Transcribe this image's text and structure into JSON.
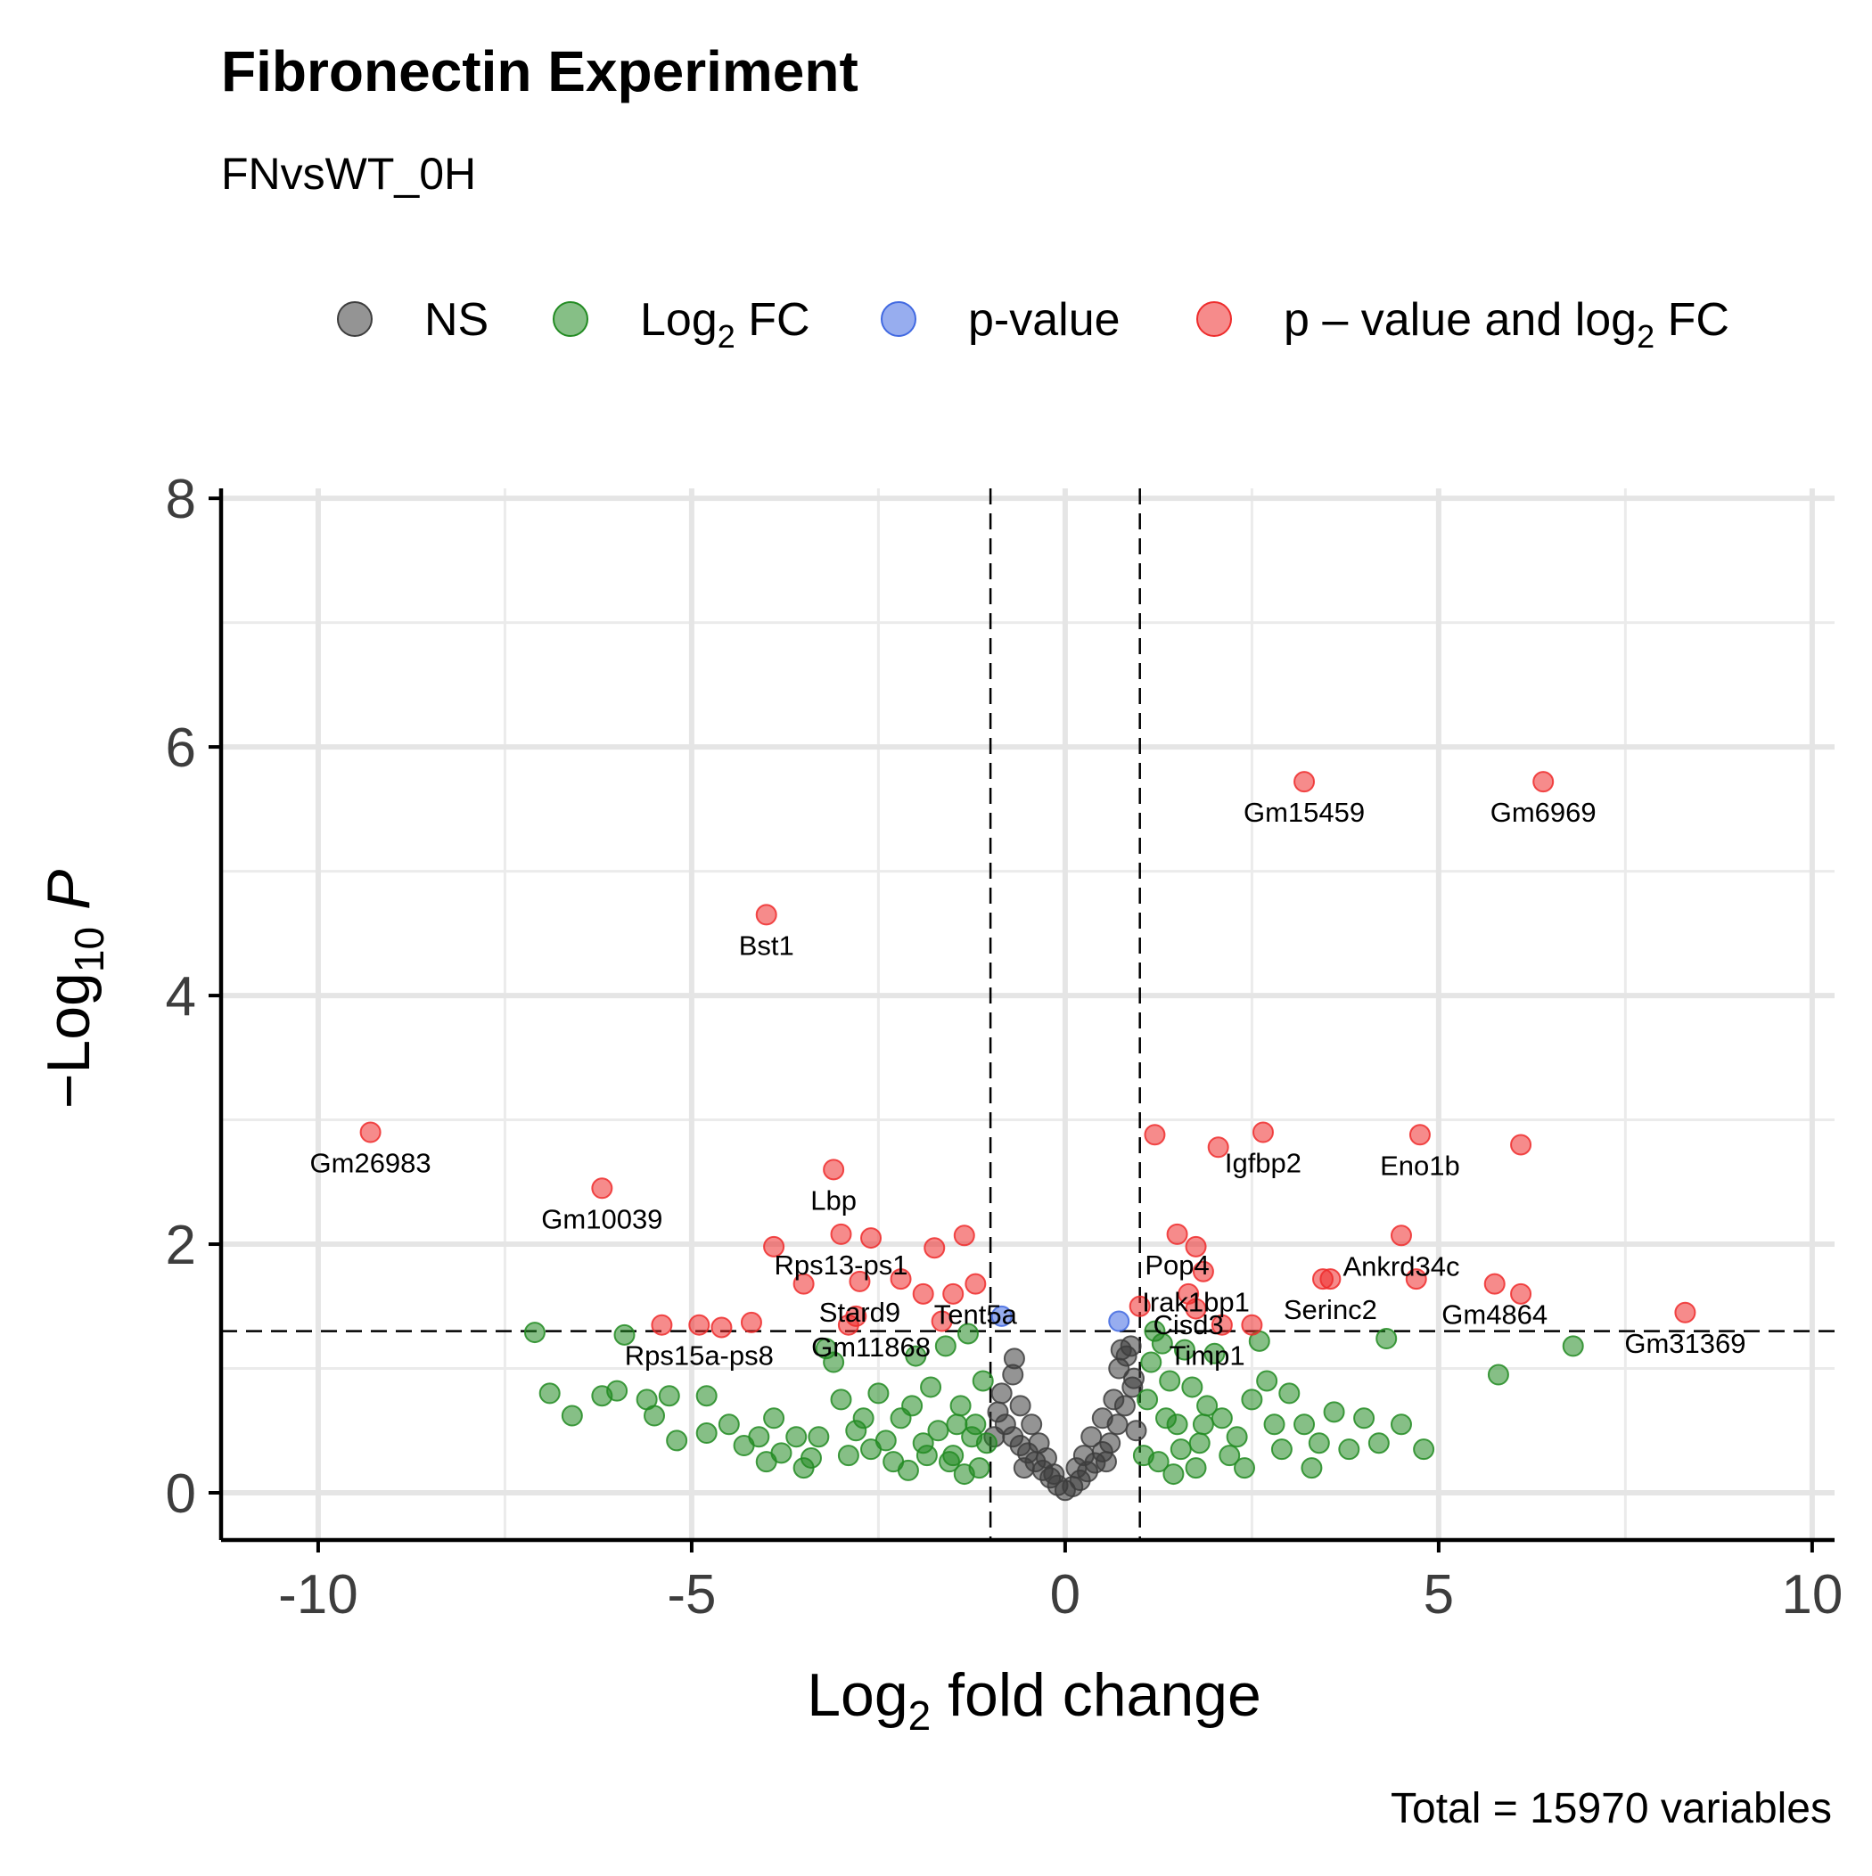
{
  "chart_data": {
    "type": "scatter",
    "title": "Fibronectin Experiment",
    "subtitle": "FNvsWT_0H",
    "caption": "Total = 15970 variables",
    "xlabel": {
      "main": "Log",
      "sub": "2",
      "rest": " fold change"
    },
    "ylabel": {
      "prefix": "−Log",
      "sub": "10",
      "italic": " P"
    },
    "xlim": [
      -11.3,
      10.3
    ],
    "ylim": [
      -0.38,
      8.08
    ],
    "xticks": [
      -10,
      -5,
      0,
      5,
      10
    ],
    "xtick_labels": [
      "-10",
      "-5",
      "0",
      "5",
      "10"
    ],
    "yticks": [
      0,
      2,
      4,
      6,
      8
    ],
    "ytick_labels": [
      "0",
      "2",
      "4",
      "6",
      "8"
    ],
    "grid": true,
    "legend_position": "top",
    "thresholds": {
      "fc_cutoff": 1,
      "p_cutoff_log10": 1.3
    },
    "colors": {
      "NS": "#3d3d3d",
      "Log2 FC": "#228b22",
      "p-value": "#4169e1",
      "p-value and log2 FC": "#ee2c2c"
    },
    "legend": [
      {
        "key": "NS",
        "label": "NS",
        "sub": "",
        "after": ""
      },
      {
        "key": "Log2 FC",
        "label": "Log",
        "sub": "2",
        "after": " FC"
      },
      {
        "key": "p-value",
        "label": "p-value",
        "sub": "",
        "after": ""
      },
      {
        "key": "p-value and log2 FC",
        "label": "p – value and log",
        "sub": "2",
        "after": " FC"
      }
    ],
    "series": [
      {
        "name": "NS",
        "points": [
          [
            -0.9,
            0.65
          ],
          [
            -0.8,
            0.55
          ],
          [
            -0.7,
            0.45
          ],
          [
            -0.6,
            0.38
          ],
          [
            -0.5,
            0.32
          ],
          [
            -0.4,
            0.25
          ],
          [
            -0.3,
            0.18
          ],
          [
            -0.2,
            0.12
          ],
          [
            -0.1,
            0.06
          ],
          [
            0.0,
            0.02
          ],
          [
            0.1,
            0.05
          ],
          [
            0.2,
            0.1
          ],
          [
            0.3,
            0.17
          ],
          [
            0.4,
            0.24
          ],
          [
            0.5,
            0.33
          ],
          [
            0.6,
            0.4
          ],
          [
            0.7,
            0.55
          ],
          [
            0.8,
            0.7
          ],
          [
            0.9,
            0.85
          ],
          [
            -0.7,
            0.95
          ],
          [
            -0.68,
            1.08
          ],
          [
            0.72,
            1.0
          ],
          [
            0.82,
            1.1
          ],
          [
            0.88,
            1.18
          ],
          [
            0.75,
            1.15
          ],
          [
            0.92,
            0.92
          ],
          [
            -0.85,
            0.8
          ],
          [
            -0.6,
            0.7
          ],
          [
            -0.45,
            0.55
          ],
          [
            -0.35,
            0.4
          ],
          [
            0.35,
            0.45
          ],
          [
            0.5,
            0.6
          ],
          [
            0.65,
            0.75
          ],
          [
            0.25,
            0.3
          ],
          [
            -0.25,
            0.28
          ],
          [
            -0.15,
            0.15
          ],
          [
            0.15,
            0.2
          ],
          [
            -0.95,
            0.45
          ],
          [
            0.95,
            0.5
          ],
          [
            -0.55,
            0.2
          ],
          [
            0.55,
            0.25
          ]
        ]
      },
      {
        "name": "Log2 FC",
        "points": [
          [
            -7.1,
            1.29
          ],
          [
            -6.9,
            0.8
          ],
          [
            -6.6,
            0.62
          ],
          [
            -6.2,
            0.78
          ],
          [
            -6.0,
            0.82
          ],
          [
            -5.9,
            1.27
          ],
          [
            -5.6,
            0.75
          ],
          [
            -5.5,
            0.62
          ],
          [
            -5.3,
            0.78
          ],
          [
            -5.2,
            0.42
          ],
          [
            -4.8,
            0.78
          ],
          [
            -4.8,
            0.48
          ],
          [
            -4.5,
            0.55
          ],
          [
            -4.3,
            0.38
          ],
          [
            -4.1,
            0.45
          ],
          [
            -3.9,
            0.6
          ],
          [
            -3.8,
            0.32
          ],
          [
            -3.6,
            0.45
          ],
          [
            -3.4,
            0.28
          ],
          [
            -3.2,
            1.16
          ],
          [
            -3.1,
            1.05
          ],
          [
            -3.0,
            0.75
          ],
          [
            -2.8,
            0.5
          ],
          [
            -2.6,
            0.35
          ],
          [
            -2.5,
            0.8
          ],
          [
            -2.2,
            0.6
          ],
          [
            -2.0,
            1.1
          ],
          [
            -1.9,
            0.4
          ],
          [
            -1.8,
            0.85
          ],
          [
            -1.6,
            1.18
          ],
          [
            -1.5,
            0.3
          ],
          [
            -1.4,
            0.7
          ],
          [
            -1.3,
            1.28
          ],
          [
            -1.2,
            0.55
          ],
          [
            -1.1,
            0.9
          ],
          [
            -1.05,
            0.4
          ],
          [
            -2.3,
            0.25
          ],
          [
            -2.7,
            0.6
          ],
          [
            -3.3,
            0.45
          ],
          [
            -1.7,
            0.5
          ],
          [
            -1.15,
            0.2
          ],
          [
            1.05,
            0.3
          ],
          [
            1.1,
            0.75
          ],
          [
            1.15,
            1.05
          ],
          [
            1.2,
            1.3
          ],
          [
            1.3,
            1.2
          ],
          [
            1.4,
            0.9
          ],
          [
            1.5,
            0.55
          ],
          [
            1.6,
            1.15
          ],
          [
            1.7,
            0.85
          ],
          [
            1.8,
            0.4
          ],
          [
            1.9,
            0.7
          ],
          [
            2.0,
            1.12
          ],
          [
            2.1,
            0.6
          ],
          [
            2.3,
            0.45
          ],
          [
            2.5,
            0.75
          ],
          [
            2.6,
            1.22
          ],
          [
            2.7,
            0.9
          ],
          [
            2.9,
            0.35
          ],
          [
            3.0,
            0.8
          ],
          [
            3.2,
            0.55
          ],
          [
            3.4,
            0.4
          ],
          [
            3.6,
            0.65
          ],
          [
            3.8,
            0.35
          ],
          [
            4.0,
            0.6
          ],
          [
            4.2,
            0.4
          ],
          [
            4.3,
            1.24
          ],
          [
            4.5,
            0.55
          ],
          [
            4.8,
            0.35
          ],
          [
            5.8,
            0.95
          ],
          [
            6.8,
            1.18
          ],
          [
            1.25,
            0.25
          ],
          [
            1.55,
            0.35
          ],
          [
            1.75,
            0.2
          ],
          [
            2.2,
            0.3
          ],
          [
            2.8,
            0.55
          ],
          [
            3.3,
            0.2
          ],
          [
            1.35,
            0.6
          ],
          [
            1.45,
            0.15
          ],
          [
            2.4,
            0.2
          ],
          [
            1.85,
            0.55
          ],
          [
            -1.35,
            0.15
          ],
          [
            -1.55,
            0.25
          ],
          [
            -1.85,
            0.3
          ],
          [
            -2.1,
            0.18
          ],
          [
            -2.4,
            0.42
          ],
          [
            -2.9,
            0.3
          ],
          [
            -1.25,
            0.45
          ],
          [
            -1.45,
            0.55
          ],
          [
            -2.05,
            0.7
          ],
          [
            -3.5,
            0.2
          ],
          [
            -4.0,
            0.25
          ]
        ]
      },
      {
        "name": "p-value",
        "points": [
          [
            -0.85,
            1.42
          ],
          [
            0.72,
            1.38
          ]
        ]
      },
      {
        "name": "p-value and log2 FC",
        "points": [
          [
            -9.3,
            2.9
          ],
          [
            -6.2,
            2.45
          ],
          [
            -5.4,
            1.35
          ],
          [
            -4.9,
            1.35
          ],
          [
            -4.6,
            1.33
          ],
          [
            -4.2,
            1.37
          ],
          [
            -3.9,
            1.98
          ],
          [
            -3.5,
            1.68
          ],
          [
            -3.1,
            2.6
          ],
          [
            -3.0,
            2.08
          ],
          [
            -2.75,
            1.7
          ],
          [
            -2.6,
            2.05
          ],
          [
            -2.2,
            1.72
          ],
          [
            -1.9,
            1.6
          ],
          [
            -1.75,
            1.97
          ],
          [
            -1.5,
            1.6
          ],
          [
            -1.35,
            2.07
          ],
          [
            -1.2,
            1.68
          ],
          [
            -1.65,
            1.38
          ],
          [
            -2.8,
            1.42
          ],
          [
            -2.9,
            1.35
          ],
          [
            -4.0,
            4.65
          ],
          [
            1.2,
            2.88
          ],
          [
            1.5,
            2.08
          ],
          [
            1.75,
            1.98
          ],
          [
            1.85,
            1.78
          ],
          [
            2.05,
            2.78
          ],
          [
            2.65,
            2.9
          ],
          [
            1.65,
            1.6
          ],
          [
            1.75,
            1.48
          ],
          [
            2.1,
            1.35
          ],
          [
            2.5,
            1.35
          ],
          [
            3.2,
            5.72
          ],
          [
            3.45,
            1.72
          ],
          [
            3.55,
            1.72
          ],
          [
            4.5,
            2.07
          ],
          [
            4.7,
            1.72
          ],
          [
            4.75,
            2.88
          ],
          [
            5.75,
            1.68
          ],
          [
            6.1,
            2.8
          ],
          [
            6.1,
            1.6
          ],
          [
            6.4,
            5.72
          ],
          [
            8.3,
            1.45
          ],
          [
            1.0,
            1.5
          ]
        ]
      }
    ],
    "labels": [
      {
        "text": "Gm15459",
        "x": 3.2,
        "y": 5.72
      },
      {
        "text": "Gm6969",
        "x": 6.4,
        "y": 5.72
      },
      {
        "text": "Bst1",
        "x": -4.0,
        "y": 4.65
      },
      {
        "text": "Gm26983",
        "x": -9.3,
        "y": 2.9
      },
      {
        "text": "Gm10039",
        "x": -6.2,
        "y": 2.45
      },
      {
        "text": "Lbp",
        "x": -3.1,
        "y": 2.6
      },
      {
        "text": "Igfbp2",
        "x": 2.65,
        "y": 2.9
      },
      {
        "text": "Eno1b",
        "x": 4.75,
        "y": 2.88
      },
      {
        "text": "Rps13-ps1",
        "x": -3.0,
        "y": 2.08
      },
      {
        "text": "Pop4",
        "x": 1.5,
        "y": 2.08
      },
      {
        "text": "Ankrd34c",
        "x": 4.5,
        "y": 2.07
      },
      {
        "text": "Irak1bp1",
        "x": 1.75,
        "y": 1.78
      },
      {
        "text": "Serinc2",
        "x": 3.55,
        "y": 1.72
      },
      {
        "text": "Gm4864",
        "x": 5.75,
        "y": 1.68
      },
      {
        "text": "Stard9",
        "x": -2.75,
        "y": 1.7
      },
      {
        "text": "Tent5a",
        "x": -1.2,
        "y": 1.68
      },
      {
        "text": "Cisd3",
        "x": 1.65,
        "y": 1.6
      },
      {
        "text": "Gm11868",
        "x": -2.6,
        "y": 1.42
      },
      {
        "text": "Timp1",
        "x": 1.9,
        "y": 1.35
      },
      {
        "text": "Gm31369",
        "x": 8.3,
        "y": 1.45
      },
      {
        "text": "Rps15a-ps8",
        "x": -4.9,
        "y": 1.35
      }
    ],
    "label_offsets": [
      [
        0,
        45
      ],
      [
        0,
        45
      ],
      [
        0,
        45
      ],
      [
        0,
        45
      ],
      [
        0,
        45
      ],
      [
        0,
        45
      ],
      [
        0,
        45
      ],
      [
        0,
        45
      ],
      [
        0,
        45
      ],
      [
        0,
        45
      ],
      [
        0,
        45
      ],
      [
        0,
        45
      ],
      [
        0,
        45
      ],
      [
        0,
        45
      ],
      [
        0,
        45
      ],
      [
        0,
        45
      ],
      [
        0,
        45
      ],
      [
        0,
        45
      ],
      [
        0,
        45
      ],
      [
        0,
        45
      ],
      [
        0,
        45
      ]
    ]
  }
}
